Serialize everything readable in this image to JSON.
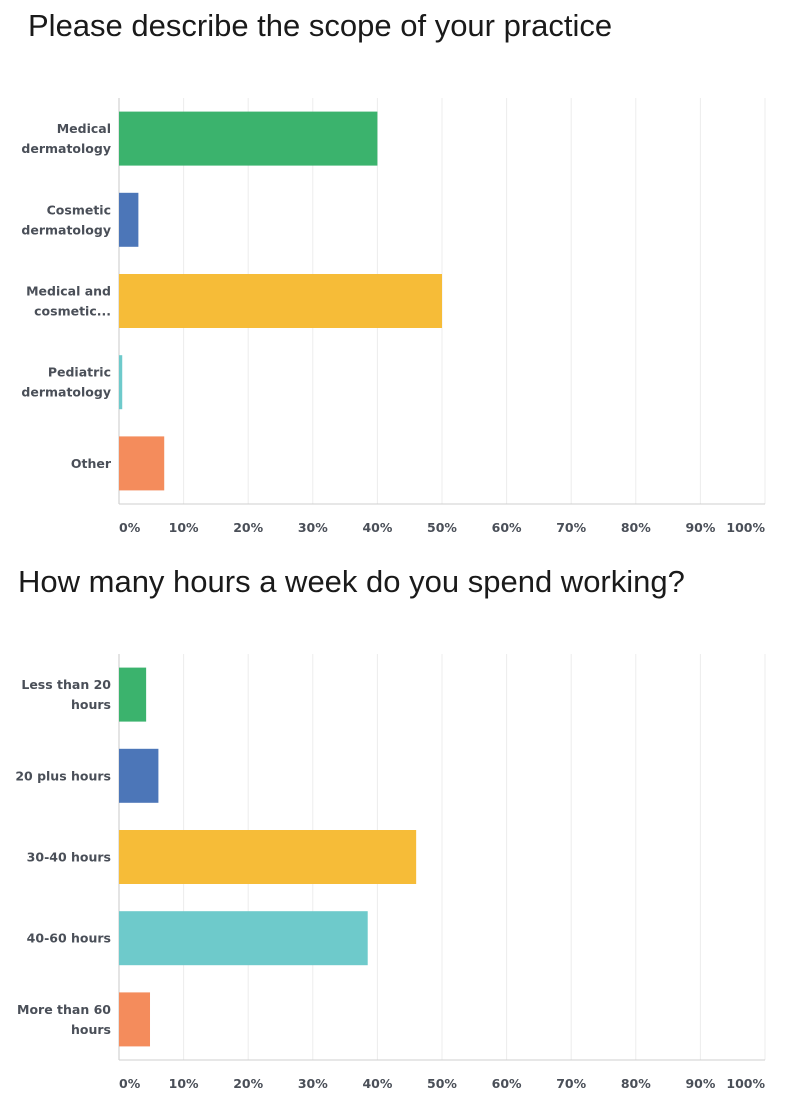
{
  "colors": [
    "#3bb36d",
    "#4c76b8",
    "#f6bc38",
    "#6ecacb",
    "#f48c5c"
  ],
  "chart_data": [
    {
      "type": "bar",
      "orientation": "horizontal",
      "title": "Please describe the scope of your practice",
      "categories": [
        [
          "Medical",
          "dermatology"
        ],
        [
          "Cosmetic",
          "dermatology"
        ],
        [
          "Medical and",
          "cosmetic..."
        ],
        [
          "Pediatric",
          "dermatology"
        ],
        [
          "Other"
        ]
      ],
      "values": [
        40,
        3,
        50,
        0.5,
        7
      ],
      "xlim": [
        0,
        100
      ],
      "xticks": [
        "0%",
        "10%",
        "20%",
        "30%",
        "40%",
        "50%",
        "60%",
        "70%",
        "80%",
        "90%",
        "100%"
      ],
      "grid": true
    },
    {
      "type": "bar",
      "orientation": "horizontal",
      "title": "How many hours a week do you spend working?",
      "categories": [
        [
          "Less than 20",
          "hours"
        ],
        [
          "20 plus hours"
        ],
        [
          "30-40 hours"
        ],
        [
          "40-60 hours"
        ],
        [
          "More than 60",
          "hours"
        ]
      ],
      "values": [
        4.2,
        6.1,
        46,
        38.5,
        4.8
      ],
      "xlim": [
        0,
        100
      ],
      "xticks": [
        "0%",
        "10%",
        "20%",
        "30%",
        "40%",
        "50%",
        "60%",
        "70%",
        "80%",
        "90%",
        "100%"
      ],
      "grid": true
    }
  ]
}
